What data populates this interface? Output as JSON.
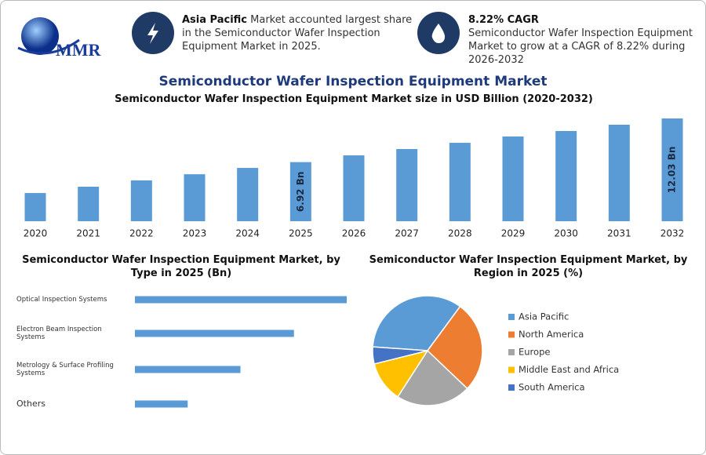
{
  "header": {
    "logo": "MMR",
    "box1": {
      "bold": "Asia Pacific",
      "text": "Market accounted largest share in the Semiconductor Wafer Inspection Equipment Market in 2025."
    },
    "box2": {
      "bold": "8.22% CAGR",
      "text": "Semiconductor Wafer Inspection Equipment Market to grow at a CAGR of 8.22% during 2026-2032"
    },
    "title": "Semiconductor Wafer Inspection Equipment Market"
  },
  "chart_data": [
    {
      "type": "bar",
      "title": "Semiconductor Wafer Inspection Equipment Market size in USD Billion (2020-2032)",
      "categories": [
        "2020",
        "2021",
        "2022",
        "2023",
        "2024",
        "2025",
        "2026",
        "2027",
        "2028",
        "2029",
        "2030",
        "2031",
        "2032"
      ],
      "values": [
        3.3,
        4.04,
        4.78,
        5.5,
        6.24,
        6.92,
        7.71,
        8.45,
        9.18,
        9.92,
        10.56,
        11.3,
        12.03
      ],
      "value_labels": [
        null,
        null,
        null,
        null,
        null,
        "6.92 Bn",
        null,
        null,
        null,
        null,
        null,
        null,
        "12.03 Bn"
      ],
      "color": "#5b9bd5"
    },
    {
      "type": "hbar",
      "title": "Semiconductor Wafer Inspection Equipment Market, by Type in 2025 (Bn)",
      "categories": [
        "Optical Inspection Systems",
        "Electron Beam Inspection Systems",
        "Metrology & Surface Profiling Systems",
        "Others"
      ],
      "values": [
        2.77,
        2.08,
        1.38,
        0.69
      ],
      "color": "#5b9bd5"
    },
    {
      "type": "pie",
      "title": "Semiconductor Wafer Inspection Equipment Market, by Region in 2025 (%)",
      "categories": [
        "Asia Pacific",
        "North America",
        "Europe",
        "Middle East and Africa",
        "South America"
      ],
      "values": [
        34,
        27,
        22,
        12,
        5
      ],
      "colors": [
        "#5b9bd5",
        "#ed7d31",
        "#a5a5a5",
        "#ffc000",
        "#4472c4"
      ]
    }
  ]
}
